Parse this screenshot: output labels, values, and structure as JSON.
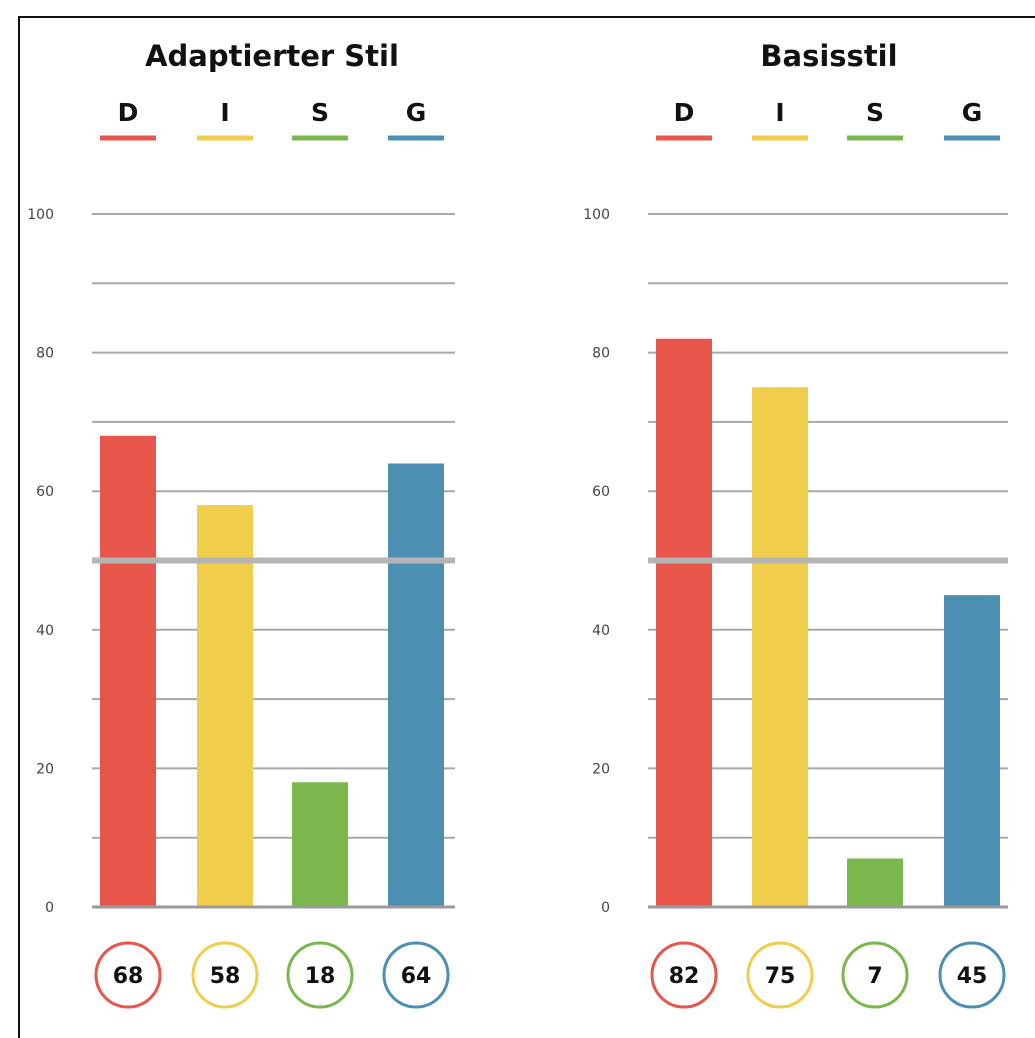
{
  "chart_data": [
    {
      "type": "bar",
      "title": "Adaptierter Stil",
      "categories": [
        "D",
        "I",
        "S",
        "G"
      ],
      "values": [
        68,
        58,
        18,
        64
      ],
      "value_labels": [
        "68",
        "58",
        "18",
        "64"
      ],
      "ylim": [
        0,
        100
      ],
      "yticks": [
        "0",
        "20",
        "40",
        "60",
        "80",
        "100"
      ],
      "reference_line": 50,
      "grid": true
    },
    {
      "type": "bar",
      "title": "Basisstil",
      "categories": [
        "D",
        "I",
        "S",
        "G"
      ],
      "values": [
        82,
        75,
        7,
        45
      ],
      "value_labels": [
        "82",
        "75",
        "7",
        "45"
      ],
      "ylim": [
        0,
        100
      ],
      "yticks": [
        "0",
        "20",
        "40",
        "60",
        "80",
        "100"
      ],
      "reference_line": 50,
      "grid": true
    }
  ],
  "colors": {
    "D": "#e8554b",
    "I": "#f0cd4a",
    "S": "#7ab84e",
    "G": "#4c8fb2",
    "grid": "#a8a8a8",
    "reference": "#b5b5b5"
  }
}
